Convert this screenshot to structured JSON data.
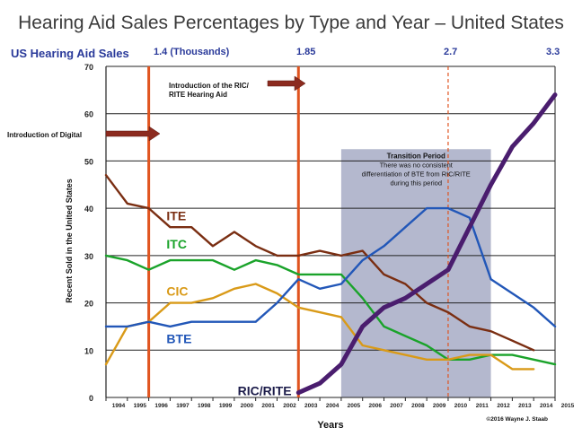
{
  "chart_data": {
    "type": "line",
    "title": "Hearing Aid Sales Percentages by Type and Year – United States",
    "subtitle": "US Hearing Aid Sales",
    "xlabel": "Years",
    "ylabel": "Recent Sold in the United States",
    "ylim": [
      0,
      70
    ],
    "yticks": [
      0,
      10,
      20,
      30,
      40,
      50,
      60,
      70
    ],
    "categories": [
      "1994",
      "1995",
      "1996",
      "1997",
      "1998",
      "1999",
      "2000",
      "2001",
      "2002",
      "2003",
      "2004",
      "2005",
      "2006",
      "2007",
      "2008",
      "2009",
      "2010",
      "2011",
      "2012",
      "2013",
      "2014",
      "2015"
    ],
    "grid": true,
    "series": [
      {
        "name": "ITE",
        "color": "#7a2e12",
        "values": [
          47,
          41,
          40,
          36,
          36,
          32,
          35,
          32,
          30,
          30,
          31,
          30,
          31,
          26,
          24,
          20,
          18,
          15,
          14,
          12,
          10,
          null
        ]
      },
      {
        "name": "ITC",
        "color": "#1aa32a",
        "values": [
          30,
          29,
          27,
          29,
          29,
          29,
          27,
          29,
          28,
          26,
          26,
          26,
          21,
          15,
          13,
          11,
          8,
          8,
          9,
          9,
          8,
          7
        ]
      },
      {
        "name": "CIC",
        "color": "#d99a18",
        "values": [
          7,
          15,
          16,
          20,
          20,
          21,
          23,
          24,
          22,
          19,
          18,
          17,
          11,
          10,
          9,
          8,
          8,
          9,
          9,
          6,
          6,
          null
        ]
      },
      {
        "name": "BTE",
        "color": "#2257b8",
        "values": [
          15,
          15,
          16,
          15,
          16,
          16,
          16,
          16,
          20,
          25,
          23,
          24,
          29,
          32,
          36,
          40,
          40,
          38,
          25,
          22,
          19,
          15
        ]
      },
      {
        "name": "RIC/RITE",
        "color": "#4a1d6e",
        "values": [
          null,
          null,
          null,
          null,
          null,
          null,
          null,
          null,
          null,
          1,
          3,
          7,
          15,
          19,
          21,
          24,
          27,
          36,
          45,
          53,
          58,
          64
        ]
      }
    ],
    "annotations": {
      "marker_values": [
        {
          "label": "1.4  (Thousands)",
          "year": "1996"
        },
        {
          "label": "1.85",
          "year": "2003"
        },
        {
          "label": "2.7",
          "year": "2010"
        },
        {
          "label": "3.3",
          "year": "2015"
        }
      ],
      "digital": "Introduction of Digital",
      "ric_intro": "Introduction of the RIC/ RITE Hearing Aid",
      "transition_title": "Transition Period",
      "transition_text": [
        "There was no consistent",
        "differentiation of BTE from RIC/RITE",
        "during this period"
      ],
      "copyright": "©2016 Wayne J. Staab"
    }
  }
}
